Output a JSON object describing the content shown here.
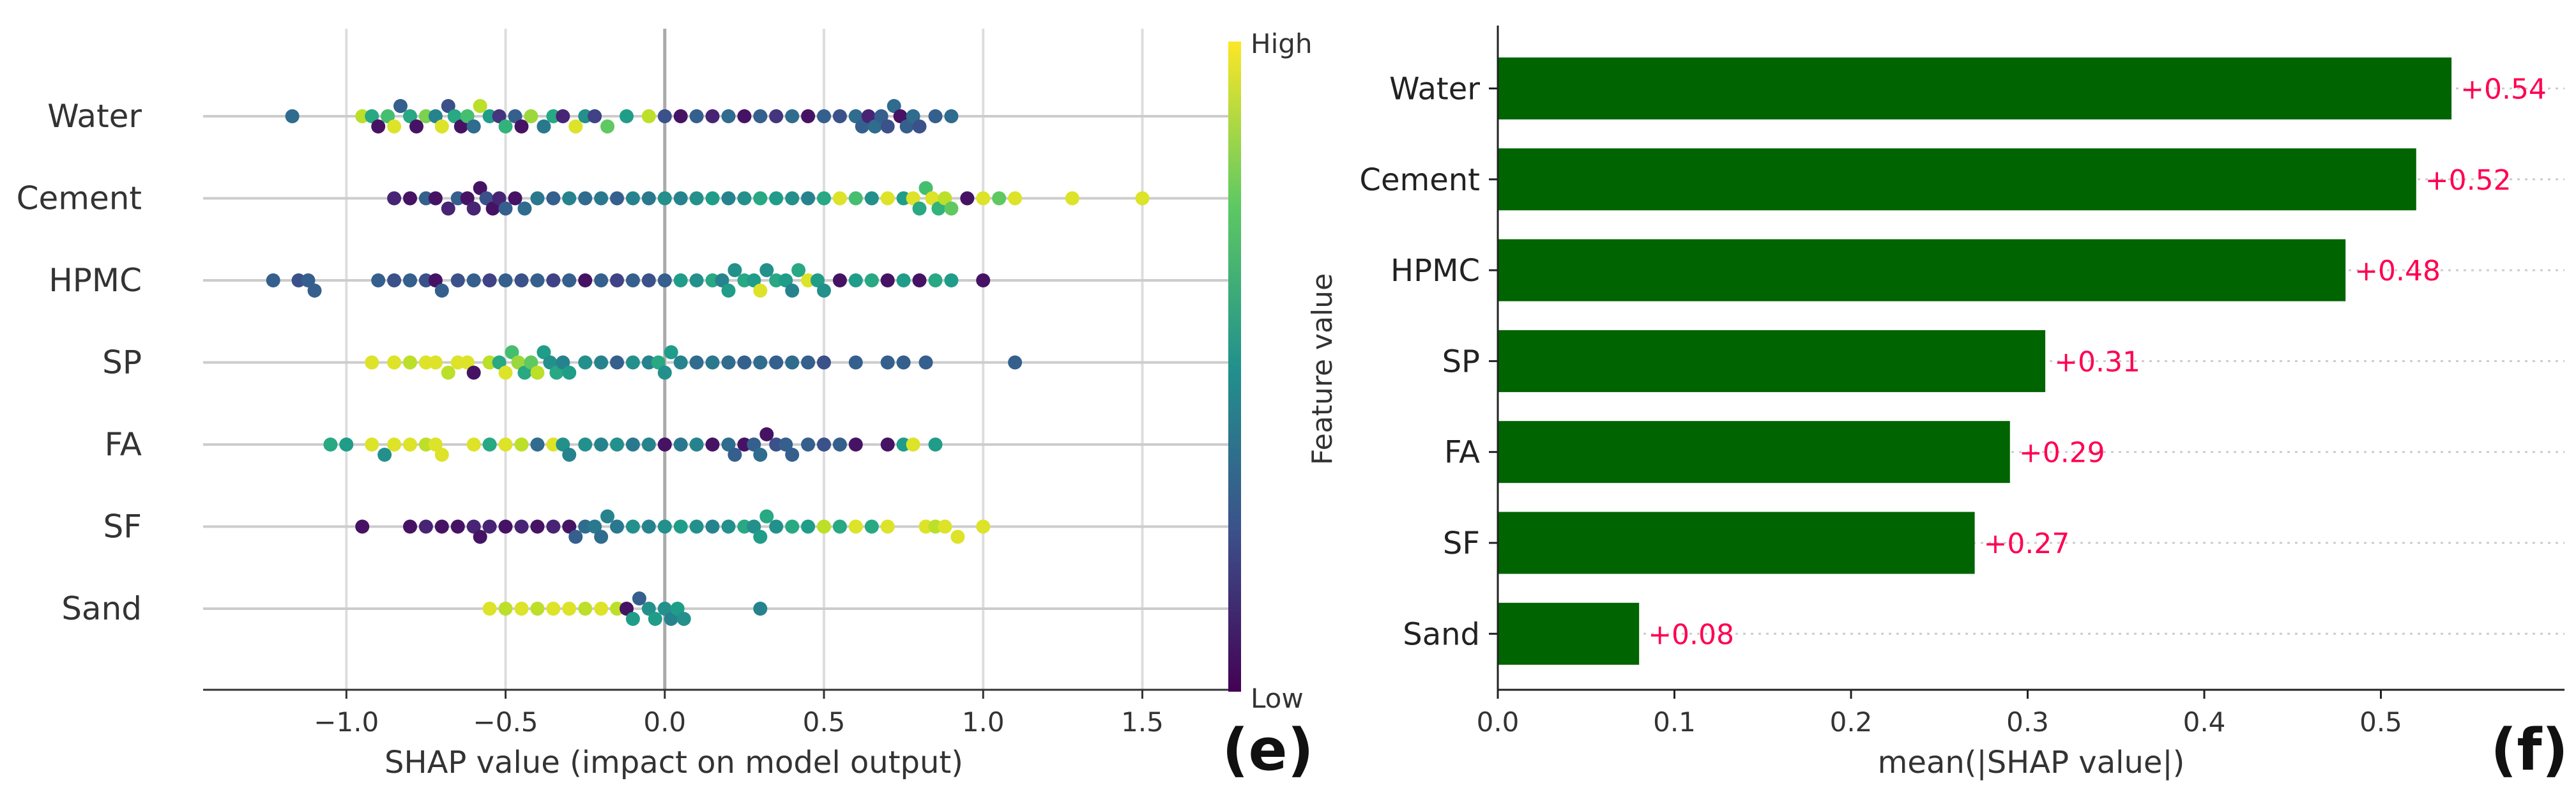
{
  "chart_data": [
    {
      "type": "scatter",
      "subtype": "shap-beeswarm",
      "panel_label": "(e)",
      "features": [
        "Water",
        "Cement",
        "HPMC",
        "SP",
        "FA",
        "SF",
        "Sand"
      ],
      "xlabel": "SHAP value (impact on model output)",
      "xlim": [
        -1.45,
        1.8
      ],
      "xticks": [
        "−1.0",
        "−0.5",
        "0.0",
        "0.5",
        "1.0",
        "1.5"
      ],
      "xtick_values": [
        -1.0,
        -0.5,
        0.0,
        0.5,
        1.0,
        1.5
      ],
      "colorbar": {
        "label": "Feature value",
        "high": "High",
        "low": "Low",
        "colormap": "viridis"
      },
      "grid": "vertical",
      "points": {
        "Water": {
          "x": [
            -1.17,
            -0.95,
            -0.92,
            -0.9,
            -0.87,
            -0.85,
            -0.83,
            -0.8,
            -0.78,
            -0.75,
            -0.72,
            -0.7,
            -0.68,
            -0.66,
            -0.64,
            -0.62,
            -0.6,
            -0.58,
            -0.55,
            -0.52,
            -0.5,
            -0.47,
            -0.45,
            -0.42,
            -0.38,
            -0.35,
            -0.32,
            -0.28,
            -0.25,
            -0.22,
            -0.18,
            -0.12,
            -0.05,
            0.0,
            0.05,
            0.1,
            0.15,
            0.2,
            0.25,
            0.3,
            0.35,
            0.4,
            0.45,
            0.5,
            0.55,
            0.6,
            0.62,
            0.64,
            0.66,
            0.68,
            0.7,
            0.72,
            0.74,
            0.76,
            0.78,
            0.8,
            0.85,
            0.9
          ],
          "c": [
            0.35,
            0.9,
            0.6,
            0.05,
            0.7,
            0.95,
            0.3,
            0.6,
            0.05,
            0.8,
            0.45,
            0.95,
            0.25,
            0.6,
            0.05,
            0.7,
            0.35,
            0.9,
            0.55,
            0.15,
            0.65,
            0.3,
            0.05,
            0.85,
            0.4,
            0.6,
            0.1,
            0.95,
            0.5,
            0.2,
            0.75,
            0.55,
            0.9,
            0.25,
            0.05,
            0.3,
            0.1,
            0.35,
            0.05,
            0.3,
            0.15,
            0.35,
            0.05,
            0.3,
            0.25,
            0.35,
            0.3,
            0.1,
            0.35,
            0.3,
            0.25,
            0.35,
            0.05,
            0.3,
            0.35,
            0.25,
            0.3,
            0.35
          ]
        },
        "Cement": {
          "x": [
            -0.85,
            -0.8,
            -0.75,
            -0.72,
            -0.68,
            -0.65,
            -0.62,
            -0.6,
            -0.58,
            -0.56,
            -0.54,
            -0.52,
            -0.5,
            -0.47,
            -0.44,
            -0.4,
            -0.35,
            -0.3,
            -0.25,
            -0.2,
            -0.15,
            -0.1,
            -0.05,
            0.0,
            0.05,
            0.1,
            0.15,
            0.2,
            0.25,
            0.3,
            0.35,
            0.4,
            0.45,
            0.5,
            0.55,
            0.6,
            0.65,
            0.7,
            0.75,
            0.78,
            0.8,
            0.82,
            0.84,
            0.86,
            0.88,
            0.9,
            0.95,
            1.0,
            1.05,
            1.1,
            1.28,
            1.5
          ],
          "c": [
            0.1,
            0.05,
            0.3,
            0.05,
            0.1,
            0.3,
            0.05,
            0.1,
            0.05,
            0.25,
            0.05,
            0.1,
            0.3,
            0.05,
            0.35,
            0.4,
            0.3,
            0.45,
            0.35,
            0.4,
            0.3,
            0.45,
            0.4,
            0.5,
            0.45,
            0.5,
            0.55,
            0.45,
            0.5,
            0.6,
            0.55,
            0.5,
            0.45,
            0.6,
            0.95,
            0.7,
            0.5,
            0.95,
            0.55,
            0.95,
            0.6,
            0.7,
            0.95,
            0.65,
            0.9,
            0.75,
            0.05,
            0.95,
            0.75,
            0.95,
            0.95,
            0.95
          ]
        },
        "HPMC": {
          "x": [
            -1.23,
            -1.15,
            -1.12,
            -1.1,
            -0.9,
            -0.85,
            -0.8,
            -0.75,
            -0.72,
            -0.7,
            -0.65,
            -0.6,
            -0.55,
            -0.5,
            -0.45,
            -0.4,
            -0.35,
            -0.3,
            -0.25,
            -0.2,
            -0.15,
            -0.1,
            -0.05,
            0.0,
            0.05,
            0.1,
            0.15,
            0.18,
            0.2,
            0.22,
            0.25,
            0.28,
            0.3,
            0.32,
            0.35,
            0.38,
            0.4,
            0.42,
            0.45,
            0.48,
            0.5,
            0.55,
            0.6,
            0.65,
            0.7,
            0.75,
            0.8,
            0.85,
            0.9,
            1.0
          ],
          "c": [
            0.3,
            0.25,
            0.3,
            0.3,
            0.3,
            0.25,
            0.3,
            0.25,
            0.05,
            0.3,
            0.25,
            0.3,
            0.2,
            0.3,
            0.25,
            0.3,
            0.2,
            0.3,
            0.05,
            0.3,
            0.2,
            0.3,
            0.25,
            0.3,
            0.55,
            0.5,
            0.6,
            0.45,
            0.55,
            0.5,
            0.6,
            0.55,
            0.95,
            0.5,
            0.6,
            0.55,
            0.45,
            0.6,
            0.95,
            0.55,
            0.5,
            0.05,
            0.55,
            0.6,
            0.05,
            0.55,
            0.05,
            0.6,
            0.55,
            0.05
          ]
        },
        "SP": {
          "x": [
            -0.92,
            -0.85,
            -0.8,
            -0.75,
            -0.72,
            -0.68,
            -0.65,
            -0.62,
            -0.6,
            -0.55,
            -0.52,
            -0.5,
            -0.48,
            -0.46,
            -0.44,
            -0.42,
            -0.4,
            -0.38,
            -0.36,
            -0.34,
            -0.32,
            -0.3,
            -0.25,
            -0.2,
            -0.15,
            -0.1,
            -0.05,
            -0.02,
            0.0,
            0.02,
            0.05,
            0.1,
            0.15,
            0.2,
            0.25,
            0.3,
            0.35,
            0.4,
            0.45,
            0.5,
            0.6,
            0.7,
            0.75,
            0.82,
            1.1
          ],
          "c": [
            0.95,
            0.95,
            0.9,
            0.95,
            0.95,
            0.9,
            0.95,
            0.95,
            0.05,
            0.9,
            0.6,
            0.95,
            0.7,
            0.85,
            0.6,
            0.75,
            0.9,
            0.55,
            0.5,
            0.6,
            0.45,
            0.55,
            0.5,
            0.45,
            0.3,
            0.5,
            0.45,
            0.6,
            0.5,
            0.55,
            0.45,
            0.35,
            0.4,
            0.35,
            0.3,
            0.35,
            0.3,
            0.35,
            0.3,
            0.25,
            0.3,
            0.3,
            0.3,
            0.3,
            0.3
          ]
        },
        "FA": {
          "x": [
            -1.05,
            -1.0,
            -0.92,
            -0.88,
            -0.85,
            -0.8,
            -0.75,
            -0.72,
            -0.7,
            -0.6,
            -0.55,
            -0.5,
            -0.45,
            -0.4,
            -0.35,
            -0.32,
            -0.3,
            -0.25,
            -0.2,
            -0.15,
            -0.1,
            -0.05,
            0.0,
            0.05,
            0.1,
            0.15,
            0.2,
            0.22,
            0.25,
            0.28,
            0.3,
            0.32,
            0.35,
            0.38,
            0.4,
            0.45,
            0.5,
            0.55,
            0.6,
            0.7,
            0.75,
            0.78,
            0.85
          ],
          "c": [
            0.6,
            0.55,
            0.95,
            0.5,
            0.95,
            0.95,
            0.9,
            0.95,
            0.95,
            0.95,
            0.6,
            0.95,
            0.9,
            0.35,
            0.95,
            0.5,
            0.45,
            0.5,
            0.45,
            0.5,
            0.4,
            0.45,
            0.05,
            0.4,
            0.45,
            0.05,
            0.35,
            0.3,
            0.05,
            0.3,
            0.35,
            0.05,
            0.25,
            0.3,
            0.3,
            0.3,
            0.25,
            0.3,
            0.05,
            0.05,
            0.55,
            0.95,
            0.55
          ]
        },
        "SF": {
          "x": [
            -0.95,
            -0.8,
            -0.75,
            -0.7,
            -0.65,
            -0.6,
            -0.58,
            -0.55,
            -0.5,
            -0.45,
            -0.4,
            -0.35,
            -0.3,
            -0.28,
            -0.25,
            -0.22,
            -0.2,
            -0.18,
            -0.15,
            -0.1,
            -0.05,
            0.0,
            0.05,
            0.1,
            0.15,
            0.2,
            0.25,
            0.28,
            0.3,
            0.32,
            0.35,
            0.4,
            0.45,
            0.5,
            0.55,
            0.6,
            0.65,
            0.7,
            0.82,
            0.85,
            0.88,
            0.92,
            1.0
          ],
          "c": [
            0.05,
            0.05,
            0.1,
            0.05,
            0.05,
            0.1,
            0.05,
            0.1,
            0.05,
            0.1,
            0.05,
            0.1,
            0.05,
            0.3,
            0.35,
            0.4,
            0.35,
            0.45,
            0.4,
            0.5,
            0.45,
            0.5,
            0.55,
            0.5,
            0.45,
            0.5,
            0.6,
            0.5,
            0.55,
            0.6,
            0.5,
            0.6,
            0.55,
            0.9,
            0.6,
            0.95,
            0.6,
            0.95,
            0.95,
            0.9,
            0.95,
            0.95,
            0.95
          ]
        },
        "Sand": {
          "x": [
            -0.55,
            -0.5,
            -0.45,
            -0.4,
            -0.35,
            -0.3,
            -0.25,
            -0.2,
            -0.15,
            -0.12,
            -0.1,
            -0.08,
            -0.05,
            -0.03,
            0.0,
            0.02,
            0.04,
            0.06,
            0.3
          ],
          "c": [
            0.95,
            0.9,
            0.95,
            0.9,
            0.95,
            0.95,
            0.9,
            0.95,
            0.9,
            0.05,
            0.55,
            0.3,
            0.5,
            0.55,
            0.5,
            0.45,
            0.55,
            0.5,
            0.45
          ]
        }
      }
    },
    {
      "type": "bar",
      "orientation": "horizontal",
      "panel_label": "(f)",
      "categories": [
        "Water",
        "Cement",
        "HPMC",
        "SP",
        "FA",
        "SF",
        "Sand"
      ],
      "values": [
        0.54,
        0.52,
        0.48,
        0.31,
        0.29,
        0.27,
        0.08
      ],
      "value_labels": [
        "+0.54",
        "+0.52",
        "+0.48",
        "+0.31",
        "+0.29",
        "+0.27",
        "+0.08"
      ],
      "xlabel": "mean(|SHAP value|)",
      "xlim": [
        0,
        0.6
      ],
      "xticks": [
        "0.0",
        "0.1",
        "0.2",
        "0.3",
        "0.4",
        "0.5"
      ],
      "xtick_values": [
        0.0,
        0.1,
        0.2,
        0.3,
        0.4,
        0.5
      ],
      "bar_color": "#006400",
      "label_color": "#ff0051",
      "grid": "dotted-horizontal"
    }
  ]
}
